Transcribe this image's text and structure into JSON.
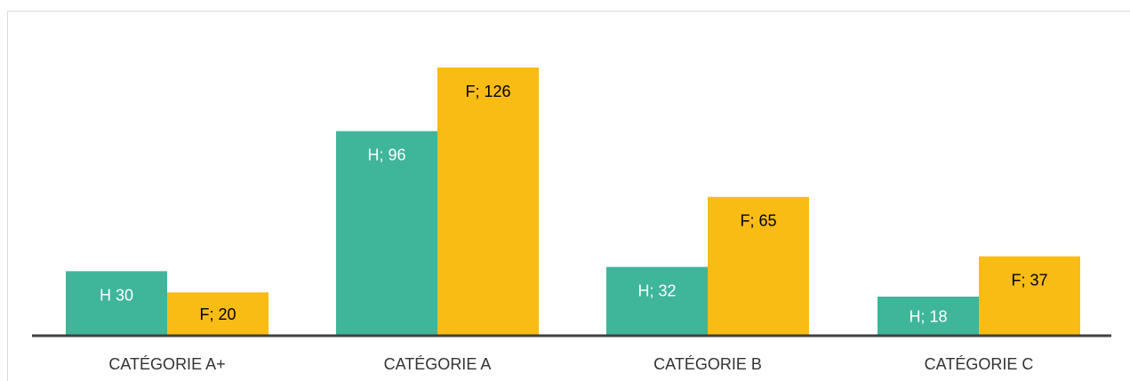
{
  "chart_data": {
    "type": "bar",
    "categories": [
      "CATÉGORIE A+",
      "CATÉGORIE A",
      "CATÉGORIE B",
      "CATÉGORIE C"
    ],
    "series": [
      {
        "key": "h",
        "values": [
          30,
          96,
          32,
          18
        ],
        "labels": [
          "H 30",
          "H; 96",
          "H; 32",
          "H; 18"
        ],
        "color": "#3fb59a",
        "label_color": "#ffffff"
      },
      {
        "key": "f",
        "values": [
          20,
          126,
          65,
          37
        ],
        "labels": [
          "F; 20",
          "F; 126",
          "F; 65",
          "F; 37"
        ],
        "color": "#f9bc15",
        "label_color": "#000000"
      }
    ],
    "ylim": [
      0,
      126
    ],
    "grid": false,
    "axis_color": "#404040"
  }
}
